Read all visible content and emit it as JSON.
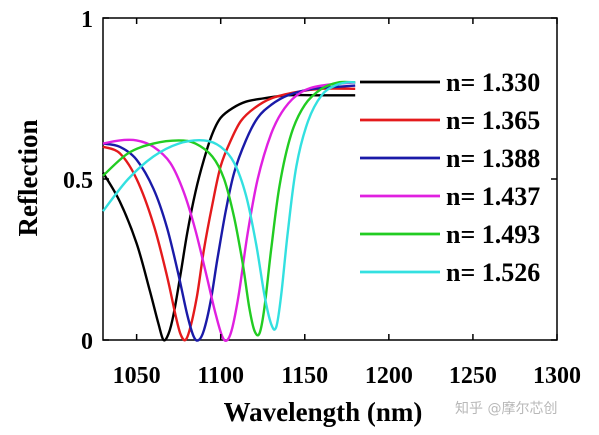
{
  "chart_data": {
    "type": "line",
    "title": "",
    "xlabel": "Wavelength (nm)",
    "ylabel": "Reflection",
    "xlim": [
      1030,
      1300
    ],
    "ylim": [
      0,
      1
    ],
    "xticks": [
      1050,
      1100,
      1150,
      1200,
      1250,
      1300
    ],
    "xtick_labels": [
      "1050",
      "1100",
      "1150",
      "1200",
      "1250",
      "1300"
    ],
    "yticks": [
      0,
      0.5,
      1
    ],
    "ytick_labels": [
      "0",
      "0.5",
      "1"
    ],
    "legend_position": "right",
    "series": [
      {
        "name": "n= 1.330",
        "color": "#000000",
        "x": [
          1030,
          1040,
          1050,
          1058,
          1063,
          1066,
          1069,
          1072,
          1076,
          1080,
          1085,
          1090,
          1095,
          1100,
          1107,
          1115,
          1125,
          1140,
          1160,
          1180
        ],
        "y": [
          0.52,
          0.43,
          0.3,
          0.15,
          0.05,
          0.0,
          0.02,
          0.08,
          0.2,
          0.33,
          0.46,
          0.56,
          0.64,
          0.69,
          0.72,
          0.74,
          0.75,
          0.76,
          0.76,
          0.76
        ]
      },
      {
        "name": "n= 1.365",
        "color": "#e41a1c",
        "x": [
          1030,
          1040,
          1050,
          1060,
          1068,
          1073,
          1076,
          1079,
          1082,
          1086,
          1090,
          1095,
          1100,
          1106,
          1112,
          1120,
          1130,
          1145,
          1160,
          1180
        ],
        "y": [
          0.6,
          0.58,
          0.5,
          0.36,
          0.2,
          0.08,
          0.02,
          0.0,
          0.04,
          0.14,
          0.28,
          0.42,
          0.54,
          0.62,
          0.68,
          0.72,
          0.75,
          0.77,
          0.78,
          0.78
        ]
      },
      {
        "name": "n= 1.388",
        "color": "#1a1aa8",
        "x": [
          1030,
          1040,
          1050,
          1060,
          1068,
          1075,
          1080,
          1084,
          1087,
          1090,
          1094,
          1098,
          1103,
          1108,
          1115,
          1122,
          1130,
          1140,
          1155,
          1180
        ],
        "y": [
          0.61,
          0.6,
          0.56,
          0.47,
          0.35,
          0.2,
          0.08,
          0.01,
          0.0,
          0.03,
          0.12,
          0.25,
          0.4,
          0.52,
          0.62,
          0.69,
          0.73,
          0.76,
          0.78,
          0.79
        ]
      },
      {
        "name": "n= 1.437",
        "color": "#e020e0",
        "x": [
          1030,
          1040,
          1050,
          1060,
          1070,
          1078,
          1085,
          1092,
          1097,
          1101,
          1104,
          1107,
          1111,
          1116,
          1122,
          1130,
          1138,
          1148,
          1160,
          1180
        ],
        "y": [
          0.61,
          0.62,
          0.62,
          0.6,
          0.55,
          0.46,
          0.34,
          0.19,
          0.08,
          0.01,
          0.0,
          0.04,
          0.15,
          0.33,
          0.5,
          0.64,
          0.72,
          0.77,
          0.79,
          0.8
        ]
      },
      {
        "name": "n= 1.493",
        "color": "#22cc22",
        "x": [
          1030,
          1045,
          1060,
          1075,
          1085,
          1095,
          1102,
          1108,
          1113,
          1117,
          1120,
          1123,
          1126,
          1130,
          1135,
          1142,
          1150,
          1160,
          1170,
          1180
        ],
        "y": [
          0.51,
          0.58,
          0.61,
          0.62,
          0.61,
          0.57,
          0.5,
          0.38,
          0.24,
          0.1,
          0.03,
          0.02,
          0.1,
          0.28,
          0.48,
          0.64,
          0.73,
          0.78,
          0.8,
          0.8
        ]
      },
      {
        "name": "n= 1.526",
        "color": "#33e0e0",
        "x": [
          1030,
          1045,
          1060,
          1075,
          1090,
          1100,
          1108,
          1115,
          1121,
          1126,
          1130,
          1133,
          1136,
          1140,
          1145,
          1152,
          1160,
          1168,
          1175,
          1180
        ],
        "y": [
          0.4,
          0.5,
          0.57,
          0.61,
          0.62,
          0.6,
          0.55,
          0.45,
          0.3,
          0.14,
          0.05,
          0.04,
          0.14,
          0.34,
          0.54,
          0.68,
          0.76,
          0.79,
          0.8,
          0.8
        ]
      }
    ]
  },
  "watermark": "知乎 @摩尔芯创"
}
